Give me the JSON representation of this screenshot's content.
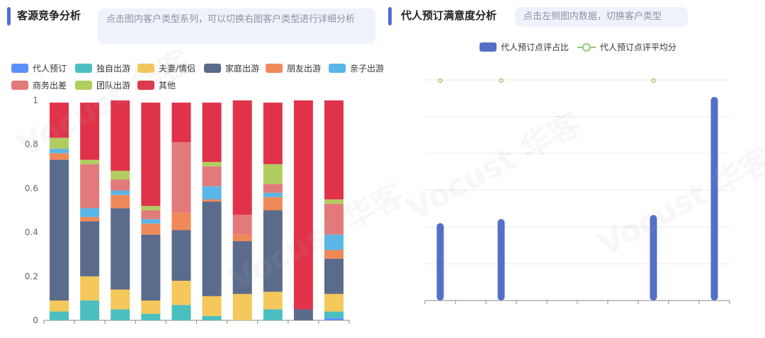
{
  "left": {
    "title": "客源竞争分析",
    "hint": "点击图内客户类型系列，可以切换右图客户类型进行详细分析"
  },
  "right": {
    "title": "代人预订满意度分析",
    "hint": "点击左侧图内数据，切换客户类型"
  },
  "watermark": "Vocust 华客",
  "chart_data": [
    {
      "type": "bar",
      "stacked": true,
      "legend_position": "top-left",
      "ylim": [
        0,
        1
      ],
      "yticks": [
        "0",
        "0.2",
        "0.4",
        "0.6",
        "0.8",
        "1"
      ],
      "categories_count": 10,
      "series": [
        {
          "name": "代人预订",
          "color": "#5b8ff9",
          "values": [
            0.0,
            0.0,
            0.0,
            0.0,
            0.0,
            0.0,
            0.0,
            0.0,
            0.0,
            0.01
          ]
        },
        {
          "name": "独自出游",
          "color": "#4bbfbf",
          "values": [
            0.04,
            0.09,
            0.05,
            0.03,
            0.07,
            0.02,
            0.0,
            0.05,
            0.0,
            0.03
          ]
        },
        {
          "name": "夫妻/情侣",
          "color": "#f4c85a",
          "values": [
            0.05,
            0.11,
            0.09,
            0.06,
            0.11,
            0.09,
            0.12,
            0.08,
            0.0,
            0.08
          ]
        },
        {
          "name": "家庭出游",
          "color": "#5a6b8c",
          "values": [
            0.64,
            0.25,
            0.37,
            0.3,
            0.23,
            0.43,
            0.24,
            0.37,
            0.05,
            0.16
          ]
        },
        {
          "name": "朋友出游",
          "color": "#f0895a",
          "values": [
            0.03,
            0.02,
            0.06,
            0.05,
            0.08,
            0.01,
            0.03,
            0.06,
            0.0,
            0.04
          ]
        },
        {
          "name": "亲子出游",
          "color": "#59b6e6",
          "values": [
            0.02,
            0.04,
            0.02,
            0.02,
            0.0,
            0.06,
            0.0,
            0.02,
            0.0,
            0.07
          ]
        },
        {
          "name": "商务出差",
          "color": "#e27a7a",
          "values": [
            0.0,
            0.2,
            0.05,
            0.04,
            0.32,
            0.09,
            0.09,
            0.04,
            0.0,
            0.14
          ]
        },
        {
          "name": "团队出游",
          "color": "#b1cd60",
          "values": [
            0.05,
            0.02,
            0.04,
            0.02,
            0.0,
            0.02,
            0.0,
            0.09,
            0.0,
            0.02
          ]
        },
        {
          "name": "其他",
          "color": "#e0334a",
          "values": [
            0.16,
            0.26,
            0.32,
            0.47,
            0.18,
            0.27,
            0.52,
            0.28,
            0.95,
            0.45
          ]
        }
      ]
    },
    {
      "type": "bar",
      "legend_position": "top-center",
      "categories_count": 10,
      "series": [
        {
          "name": "代人预订点评占比",
          "color": "#5470c6",
          "type": "bar",
          "values": [
            0.38,
            0,
            0.4,
            0,
            0,
            0,
            0,
            0.42,
            0,
            1.0
          ]
        },
        {
          "name": "代人预订点评平均分",
          "color": "#91cc75",
          "type": "line",
          "values": [
            1,
            null,
            1,
            null,
            null,
            null,
            null,
            1,
            null,
            null
          ]
        }
      ]
    }
  ]
}
